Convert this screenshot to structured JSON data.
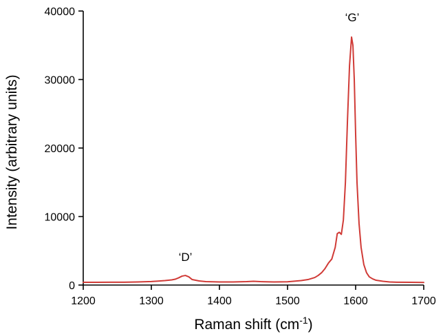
{
  "chart_data": {
    "type": "line",
    "xlabel": "Raman shift (cm",
    "xlabel_superscript": "-1",
    "xlabel_suffix": ")",
    "ylabel": "Intensity (arbitrary units)",
    "xlim": [
      1200,
      1700
    ],
    "ylim": [
      0,
      40000
    ],
    "xticks": [
      1200,
      1300,
      1400,
      1500,
      1600,
      1700
    ],
    "yticks": [
      0,
      10000,
      20000,
      30000,
      40000
    ],
    "grid": false,
    "color": "#d03a36",
    "annotations": [
      {
        "text": "‘D’",
        "x": 1350,
        "y": 3500
      },
      {
        "text": "‘G’",
        "x": 1595,
        "y": 38500
      }
    ],
    "series": [
      {
        "x": [
          1200,
          1220,
          1240,
          1260,
          1280,
          1300,
          1310,
          1320,
          1330,
          1335,
          1340,
          1345,
          1350,
          1355,
          1360,
          1370,
          1380,
          1400,
          1420,
          1440,
          1450,
          1460,
          1480,
          1500,
          1520,
          1530,
          1540,
          1545,
          1550,
          1555,
          1560,
          1565,
          1570,
          1573,
          1576,
          1579,
          1582,
          1585,
          1588,
          1591,
          1594,
          1596,
          1598,
          1600,
          1602,
          1605,
          1608,
          1612,
          1616,
          1620,
          1625,
          1630,
          1640,
          1650,
          1660,
          1680,
          1700
        ],
        "y": [
          400,
          400,
          420,
          420,
          450,
          520,
          580,
          650,
          750,
          850,
          1050,
          1300,
          1400,
          1200,
          800,
          600,
          500,
          450,
          450,
          500,
          550,
          500,
          450,
          480,
          650,
          800,
          1100,
          1400,
          1800,
          2400,
          3200,
          3800,
          5500,
          7500,
          7700,
          7400,
          9500,
          15000,
          24000,
          32000,
          36200,
          35000,
          30000,
          22000,
          15000,
          9000,
          5500,
          3000,
          1800,
          1200,
          900,
          700,
          550,
          450,
          420,
          400,
          380
        ]
      }
    ]
  }
}
